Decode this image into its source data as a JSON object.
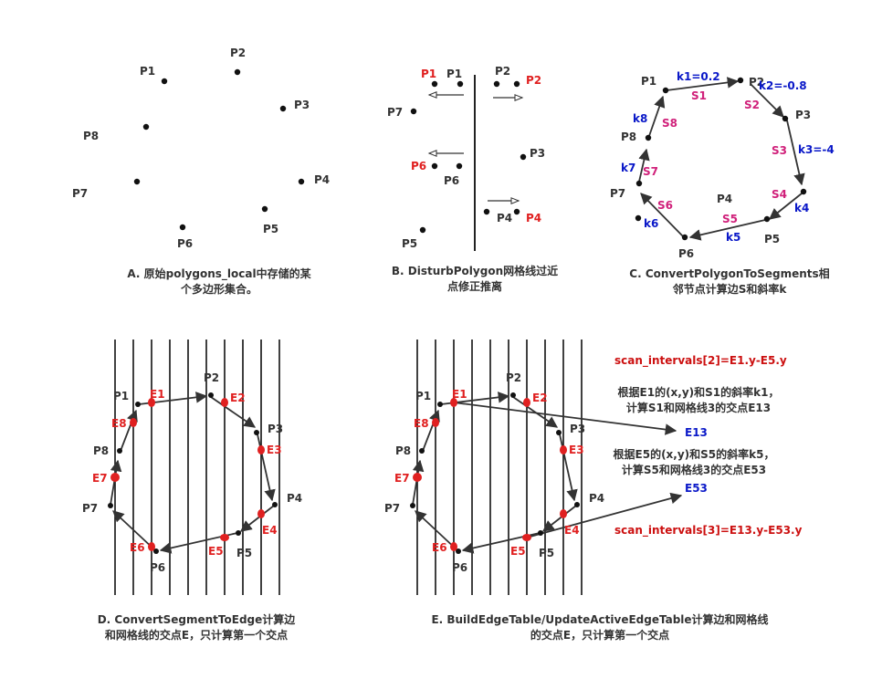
{
  "panelA": {
    "caption": [
      "A. 原始polygons_local中存储的某",
      "个多边形集合。"
    ],
    "points": [
      "P1",
      "P2",
      "P3",
      "P4",
      "P5",
      "P6",
      "P7",
      "P8"
    ]
  },
  "panelB": {
    "caption": [
      "B. DisturbPolygon网格线过近",
      "点修正推离"
    ],
    "points": [
      "P1",
      "P2",
      "P3",
      "P4",
      "P5",
      "P6",
      "P7"
    ],
    "moved": [
      "P1",
      "P2",
      "P6",
      "P4"
    ]
  },
  "panelC": {
    "caption": [
      "C. ConvertPolygonToSegments相",
      "邻节点计算边S和斜率k"
    ],
    "points": [
      "P1",
      "P2",
      "P3",
      "P4",
      "P5",
      "P6",
      "P7",
      "P8"
    ],
    "segments": [
      "S1",
      "S2",
      "S3",
      "S4",
      "S5",
      "S6",
      "S7",
      "S8"
    ],
    "slopes": [
      "k1=0.2",
      "k2=-0.8",
      "k3=-4",
      "k4",
      "k5",
      "k6",
      "k7",
      "k8"
    ]
  },
  "panelD": {
    "caption": [
      "D. ConvertSegmentToEdge计算边",
      "和网格线的交点E，只计算第一个交点"
    ],
    "points": [
      "P1",
      "P2",
      "P3",
      "P4",
      "P5",
      "P6",
      "P7",
      "P8"
    ],
    "edges": [
      "E1",
      "E2",
      "E3",
      "E4",
      "E5",
      "E6",
      "E7",
      "E8"
    ]
  },
  "panelE": {
    "caption": [
      "E. BuildEdgeTable/UpdateActiveEdgeTable计算边和网格线",
      "的交点E，只计算第一个交点"
    ],
    "points": [
      "P1",
      "P2",
      "P3",
      "P4",
      "P5",
      "P6",
      "P7",
      "P8"
    ],
    "edges": [
      "E1",
      "E2",
      "E3",
      "E4",
      "E5",
      "E6",
      "E7",
      "E8"
    ],
    "scan2": "scan_intervals[2]=E1.y-E5.y",
    "note1": [
      "根据E1的(x,y)和S1的斜率k1，",
      "计算S1和网格线3的交点E13"
    ],
    "e13": "E13",
    "note2": [
      "根据E5的(x,y)和S5的斜率k5，",
      "计算S5和网格线3的交点E53"
    ],
    "e53": "E53",
    "scan3": "scan_intervals[3]=E13.y-E53.y"
  },
  "colors": {
    "red": "#e02020",
    "blue": "#0a18c8",
    "magenta": "#d0207a",
    "dark": "#333333"
  }
}
